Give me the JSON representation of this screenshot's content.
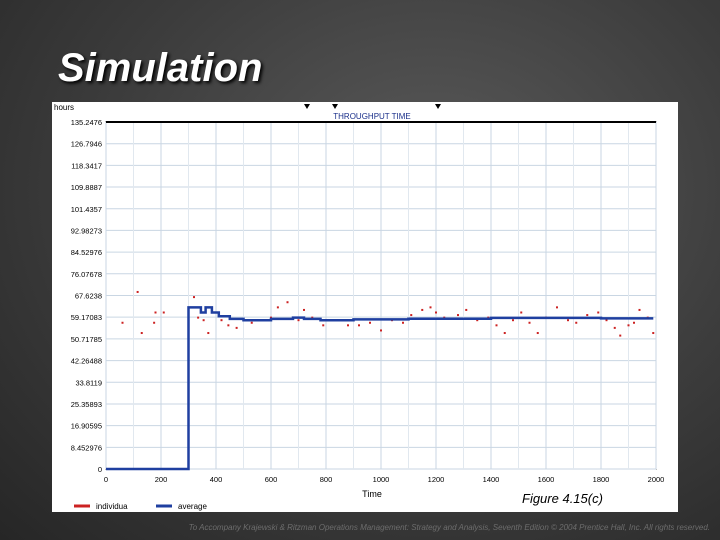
{
  "slide": {
    "title": "Simulation",
    "footer": "To Accompany Krajewski & Ritzman Operations Management: Strategy and Analysis, Seventh Edition © 2004 Prentice Hall, Inc. All rights reserved."
  },
  "chart_data": {
    "type": "line",
    "title": "THROUGHPUT TIME",
    "ylabel": "hours",
    "xlabel": "Time",
    "figure_caption": "Figure 4.15(c)",
    "xlim": [
      0,
      2000
    ],
    "ylim": [
      0,
      135.2476
    ],
    "x_ticks": [
      0,
      200,
      400,
      600,
      800,
      1000,
      1200,
      1400,
      1600,
      1800,
      2000
    ],
    "y_ticks": [
      {
        "value": 0,
        "label": "0"
      },
      {
        "value": 8.452976,
        "label": "8.452976"
      },
      {
        "value": 16.90595,
        "label": "16.90595"
      },
      {
        "value": 25.35893,
        "label": "25.35893"
      },
      {
        "value": 33.8119,
        "label": "33.8119"
      },
      {
        "value": 42.26488,
        "label": "42.26488"
      },
      {
        "value": 50.71785,
        "label": "50.71785"
      },
      {
        "value": 59.17083,
        "label": "59.17083"
      },
      {
        "value": 67.6238,
        "label": "67.6238"
      },
      {
        "value": 76.07678,
        "label": "76.07678"
      },
      {
        "value": 84.52976,
        "label": "84.52976"
      },
      {
        "value": 92.98273,
        "label": "92.98273"
      },
      {
        "value": 101.4357,
        "label": "101.4357"
      },
      {
        "value": 109.8887,
        "label": "109.8887"
      },
      {
        "value": 118.3417,
        "label": "118.3417"
      },
      {
        "value": 126.7946,
        "label": "126.7946"
      },
      {
        "value": 135.2476,
        "label": "135.2476"
      }
    ],
    "grid": true,
    "legend_position": "bottom-left",
    "series": [
      {
        "name": "individua",
        "style": "points",
        "color": "#cc2222",
        "points": [
          [
            60,
            57
          ],
          [
            115,
            69
          ],
          [
            130,
            53
          ],
          [
            175,
            57
          ],
          [
            180,
            61
          ],
          [
            210,
            61
          ],
          [
            320,
            67
          ],
          [
            335,
            59
          ],
          [
            355,
            58
          ],
          [
            372,
            53
          ],
          [
            420,
            58
          ],
          [
            445,
            56
          ],
          [
            475,
            55
          ],
          [
            530,
            57
          ],
          [
            600,
            59
          ],
          [
            625,
            63
          ],
          [
            660,
            65
          ],
          [
            700,
            58
          ],
          [
            720,
            62
          ],
          [
            750,
            59
          ],
          [
            790,
            56
          ],
          [
            840,
            58
          ],
          [
            880,
            56
          ],
          [
            920,
            56
          ],
          [
            960,
            57
          ],
          [
            1000,
            54
          ],
          [
            1040,
            58
          ],
          [
            1080,
            57
          ],
          [
            1110,
            60
          ],
          [
            1150,
            62
          ],
          [
            1180,
            63
          ],
          [
            1200,
            61
          ],
          [
            1230,
            59
          ],
          [
            1280,
            60
          ],
          [
            1310,
            62
          ],
          [
            1350,
            58
          ],
          [
            1390,
            59
          ],
          [
            1420,
            56
          ],
          [
            1450,
            53
          ],
          [
            1480,
            58
          ],
          [
            1510,
            61
          ],
          [
            1540,
            57
          ],
          [
            1570,
            53
          ],
          [
            1600,
            59
          ],
          [
            1640,
            63
          ],
          [
            1680,
            58
          ],
          [
            1710,
            57
          ],
          [
            1750,
            60
          ],
          [
            1790,
            61
          ],
          [
            1820,
            58
          ],
          [
            1850,
            55
          ],
          [
            1870,
            52
          ],
          [
            1900,
            56
          ],
          [
            1920,
            57
          ],
          [
            1940,
            62
          ],
          [
            1970,
            59
          ],
          [
            1990,
            53
          ]
        ]
      },
      {
        "name": "average",
        "style": "step",
        "color": "#1f3fa0",
        "points": [
          [
            0,
            0
          ],
          [
            300,
            0
          ],
          [
            300,
            63
          ],
          [
            345,
            63
          ],
          [
            345,
            61
          ],
          [
            362,
            61
          ],
          [
            362,
            63
          ],
          [
            385,
            63
          ],
          [
            385,
            61
          ],
          [
            410,
            61
          ],
          [
            410,
            59.5
          ],
          [
            450,
            59.5
          ],
          [
            450,
            58.5
          ],
          [
            500,
            58.5
          ],
          [
            500,
            58
          ],
          [
            600,
            58
          ],
          [
            600,
            58.5
          ],
          [
            680,
            58.5
          ],
          [
            680,
            59
          ],
          [
            720,
            59
          ],
          [
            720,
            58.5
          ],
          [
            780,
            58.5
          ],
          [
            780,
            58
          ],
          [
            900,
            58
          ],
          [
            900,
            58.3
          ],
          [
            1100,
            58.3
          ],
          [
            1100,
            58.6
          ],
          [
            1400,
            58.6
          ],
          [
            1400,
            58.9
          ],
          [
            1800,
            58.9
          ],
          [
            1800,
            58.7
          ],
          [
            1990,
            58.7
          ]
        ]
      }
    ]
  }
}
